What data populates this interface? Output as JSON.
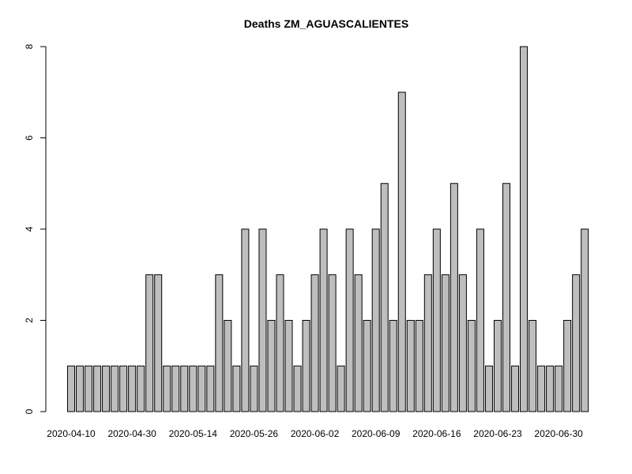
{
  "chart_data": {
    "type": "bar",
    "title": "Deaths ZM_AGUASCALIENTES",
    "xlabel": "",
    "ylabel": "",
    "ylim": [
      0,
      8
    ],
    "y_ticks": [
      0,
      2,
      4,
      6,
      8
    ],
    "grid": false,
    "bar_color": "#bebebe",
    "x_tick_labels": [
      {
        "label": "2020-04-10",
        "bar_index": 0
      },
      {
        "label": "2020-04-30",
        "bar_index": 7
      },
      {
        "label": "2020-05-14",
        "bar_index": 14
      },
      {
        "label": "2020-05-26",
        "bar_index": 21
      },
      {
        "label": "2020-06-02",
        "bar_index": 28
      },
      {
        "label": "2020-06-09",
        "bar_index": 35
      },
      {
        "label": "2020-06-16",
        "bar_index": 42
      },
      {
        "label": "2020-06-23",
        "bar_index": 49
      },
      {
        "label": "2020-06-30",
        "bar_index": 56
      }
    ],
    "values": [
      1,
      1,
      1,
      1,
      1,
      1,
      1,
      1,
      1,
      3,
      3,
      1,
      1,
      1,
      1,
      1,
      1,
      3,
      2,
      1,
      4,
      1,
      4,
      2,
      3,
      2,
      1,
      2,
      3,
      4,
      3,
      1,
      4,
      3,
      2,
      4,
      5,
      2,
      7,
      2,
      2,
      3,
      4,
      3,
      5,
      3,
      2,
      4,
      1,
      2,
      5,
      1,
      8,
      2,
      1,
      1,
      1,
      2,
      3,
      4
    ]
  }
}
